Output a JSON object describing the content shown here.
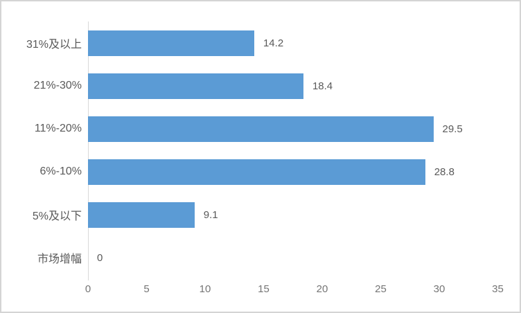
{
  "chart_data": {
    "type": "bar",
    "orientation": "horizontal",
    "title": "",
    "xlabel": "",
    "ylabel": "",
    "categories": [
      "31%及以上",
      "21%-30%",
      "11%-20%",
      "6%-10%",
      "5%及以下",
      "市场增幅"
    ],
    "values": [
      14.2,
      18.4,
      29.5,
      28.8,
      9.1,
      0
    ],
    "data_labels": [
      "14.2",
      "18.4",
      "29.5",
      "28.8",
      "9.1",
      "0"
    ],
    "x_ticks": [
      0,
      5,
      10,
      15,
      20,
      25,
      30,
      35
    ],
    "xlim": [
      0,
      35
    ],
    "grid": "off",
    "legend": "none",
    "colors": {
      "bar": "#5b9bd5",
      "axis_line": "#d9d9d9",
      "category_label": "#595959",
      "data_label": "#595959",
      "tick_label": "#757575",
      "background": "#ffffff",
      "border": "#d4d4d4"
    }
  }
}
